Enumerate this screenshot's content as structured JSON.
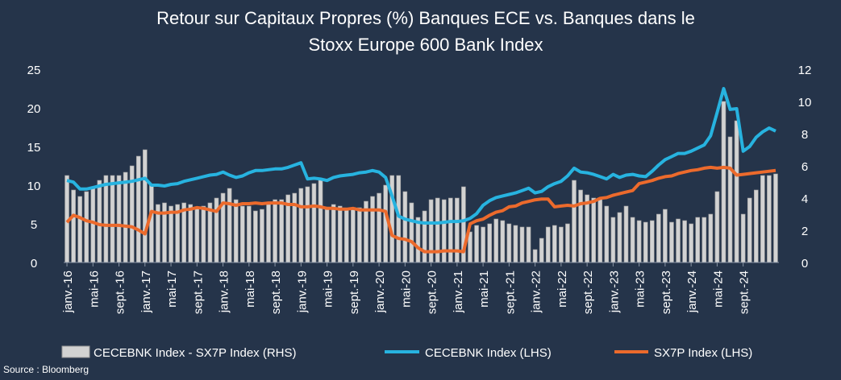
{
  "chart_data": {
    "type": "bar+line",
    "title_lines": [
      "Retour sur Capitaux Propres (%) Banques ECE vs. Banques dans le",
      "Stoxx Europe 600 Bank Index"
    ],
    "source": "Source : Bloomberg",
    "left_axis": {
      "ylim": [
        0,
        25
      ],
      "ticks": [
        "0",
        "5",
        "10",
        "15",
        "20",
        "25"
      ]
    },
    "right_axis": {
      "ylim": [
        0,
        12
      ],
      "ticks": [
        "0",
        "2",
        "4",
        "6",
        "8",
        "10",
        "12"
      ]
    },
    "x_tick_labels": [
      "janv.-16",
      "mai-16",
      "sept.-16",
      "janv.-17",
      "mai-17",
      "sept.-17",
      "janv.-18",
      "mai-18",
      "sept.-18",
      "janv.-19",
      "mai-19",
      "sept.-19",
      "janv.-20",
      "mai-20",
      "sept.-20",
      "janv.-21",
      "mai-21",
      "sept.-21",
      "janv.-22",
      "mai-22",
      "sept.-22",
      "janv.-23",
      "mai-23",
      "sept.-23",
      "janv.-24",
      "mai-24",
      "sept.-24"
    ],
    "colors": {
      "bar_fill": "#d2d2d2",
      "bar_stroke": "#9a9a9a",
      "cecebnk": "#27b3e0",
      "sx7p": "#ec6a2c",
      "axis": "#8a95a5",
      "background": "#25344a"
    },
    "series": [
      {
        "name": "CECEBNK Index - SX7P Index (RHS)",
        "type": "bar",
        "axis": "right",
        "values": [
          5.4,
          4.5,
          4.1,
          4.4,
          4.7,
          5.1,
          5.4,
          5.4,
          5.4,
          5.6,
          6.0,
          6.6,
          7.0,
          4.8,
          3.6,
          3.7,
          3.5,
          3.6,
          3.7,
          3.6,
          3.4,
          3.5,
          3.7,
          4.0,
          4.3,
          4.6,
          3.9,
          3.5,
          3.5,
          3.2,
          3.3,
          3.6,
          3.9,
          3.9,
          4.2,
          4.3,
          4.6,
          4.7,
          4.9,
          5.2,
          3.4,
          3.6,
          3.5,
          3.3,
          3.3,
          3.4,
          3.8,
          4.1,
          4.3,
          4.8,
          5.4,
          5.4,
          4.4,
          3.7,
          2.8,
          3.2,
          3.9,
          4.0,
          3.9,
          4.0,
          4.0,
          4.7,
          1.9,
          2.3,
          2.2,
          2.4,
          2.7,
          2.6,
          2.4,
          2.3,
          2.2,
          2.2,
          0.8,
          1.5,
          2.2,
          2.3,
          2.2,
          2.4,
          5.1,
          4.5,
          4.2,
          4.0,
          3.9,
          3.5,
          2.8,
          3.1,
          3.5,
          2.8,
          2.6,
          2.5,
          2.6,
          3.0,
          3.3,
          2.5,
          2.7,
          2.6,
          2.4,
          2.8,
          2.8,
          3.0,
          4.4,
          10.0,
          7.8,
          8.8,
          3.0,
          4.0,
          4.5,
          5.4,
          5.4,
          5.5
        ]
      },
      {
        "name": "CECEBNK Index (LHS)",
        "type": "line",
        "axis": "left",
        "values": [
          10.6,
          10.4,
          9.5,
          9.5,
          9.7,
          9.9,
          10.1,
          10.2,
          10.3,
          10.4,
          10.5,
          10.7,
          10.9,
          10.0,
          10.0,
          9.9,
          10.1,
          10.2,
          10.5,
          10.7,
          10.9,
          11.1,
          11.3,
          11.4,
          11.7,
          11.3,
          11.0,
          11.2,
          11.6,
          11.9,
          11.9,
          12.0,
          12.1,
          12.1,
          12.3,
          12.6,
          12.9,
          10.8,
          10.9,
          10.8,
          10.6,
          11.0,
          11.2,
          11.3,
          11.4,
          11.6,
          11.7,
          11.9,
          11.7,
          11.0,
          8.6,
          6.0,
          5.6,
          5.4,
          5.2,
          5.1,
          5.1,
          5.1,
          5.2,
          5.3,
          5.3,
          5.4,
          5.7,
          6.3,
          7.4,
          8.0,
          8.4,
          8.6,
          8.8,
          9.0,
          9.3,
          9.6,
          9.0,
          9.2,
          9.8,
          10.2,
          10.5,
          11.2,
          12.2,
          11.7,
          11.6,
          11.4,
          11.1,
          10.8,
          11.4,
          11.0,
          11.3,
          11.4,
          11.2,
          11.1,
          11.8,
          12.6,
          13.3,
          13.7,
          14.1,
          14.1,
          14.4,
          14.8,
          15.2,
          16.4,
          19.4,
          22.5,
          19.8,
          19.9,
          14.4,
          15.0,
          16.2,
          16.9,
          17.4,
          17.0
        ]
      },
      {
        "name": "SX7P Index (LHS)",
        "type": "line",
        "axis": "left",
        "values": [
          5.2,
          6.1,
          5.8,
          5.4,
          5.2,
          4.9,
          4.8,
          4.8,
          4.8,
          4.7,
          4.6,
          4.2,
          3.7,
          6.6,
          6.4,
          6.4,
          6.5,
          6.5,
          6.8,
          6.9,
          7.1,
          7.0,
          6.8,
          6.6,
          7.7,
          7.6,
          7.4,
          7.6,
          7.6,
          7.7,
          7.6,
          7.7,
          7.7,
          7.7,
          7.5,
          7.5,
          7.2,
          7.2,
          7.3,
          7.2,
          7.0,
          7.0,
          6.9,
          6.9,
          7.0,
          6.8,
          6.8,
          6.8,
          6.8,
          6.6,
          3.5,
          3.1,
          3.0,
          2.7,
          1.9,
          1.4,
          1.4,
          1.4,
          1.5,
          1.5,
          1.5,
          1.4,
          5.0,
          5.4,
          5.6,
          6.1,
          6.5,
          6.7,
          7.2,
          7.3,
          7.7,
          7.9,
          8.1,
          8.2,
          8.2,
          7.2,
          7.3,
          7.4,
          7.3,
          7.6,
          7.7,
          7.9,
          8.3,
          8.4,
          8.7,
          8.9,
          9.1,
          9.3,
          10.2,
          10.4,
          10.6,
          10.9,
          11.1,
          11.2,
          11.5,
          11.7,
          11.9,
          12.0,
          12.2,
          12.3,
          12.2,
          12.3,
          12.2,
          11.3,
          11.4,
          11.5,
          11.6,
          11.7,
          11.8,
          11.9
        ]
      }
    ]
  }
}
